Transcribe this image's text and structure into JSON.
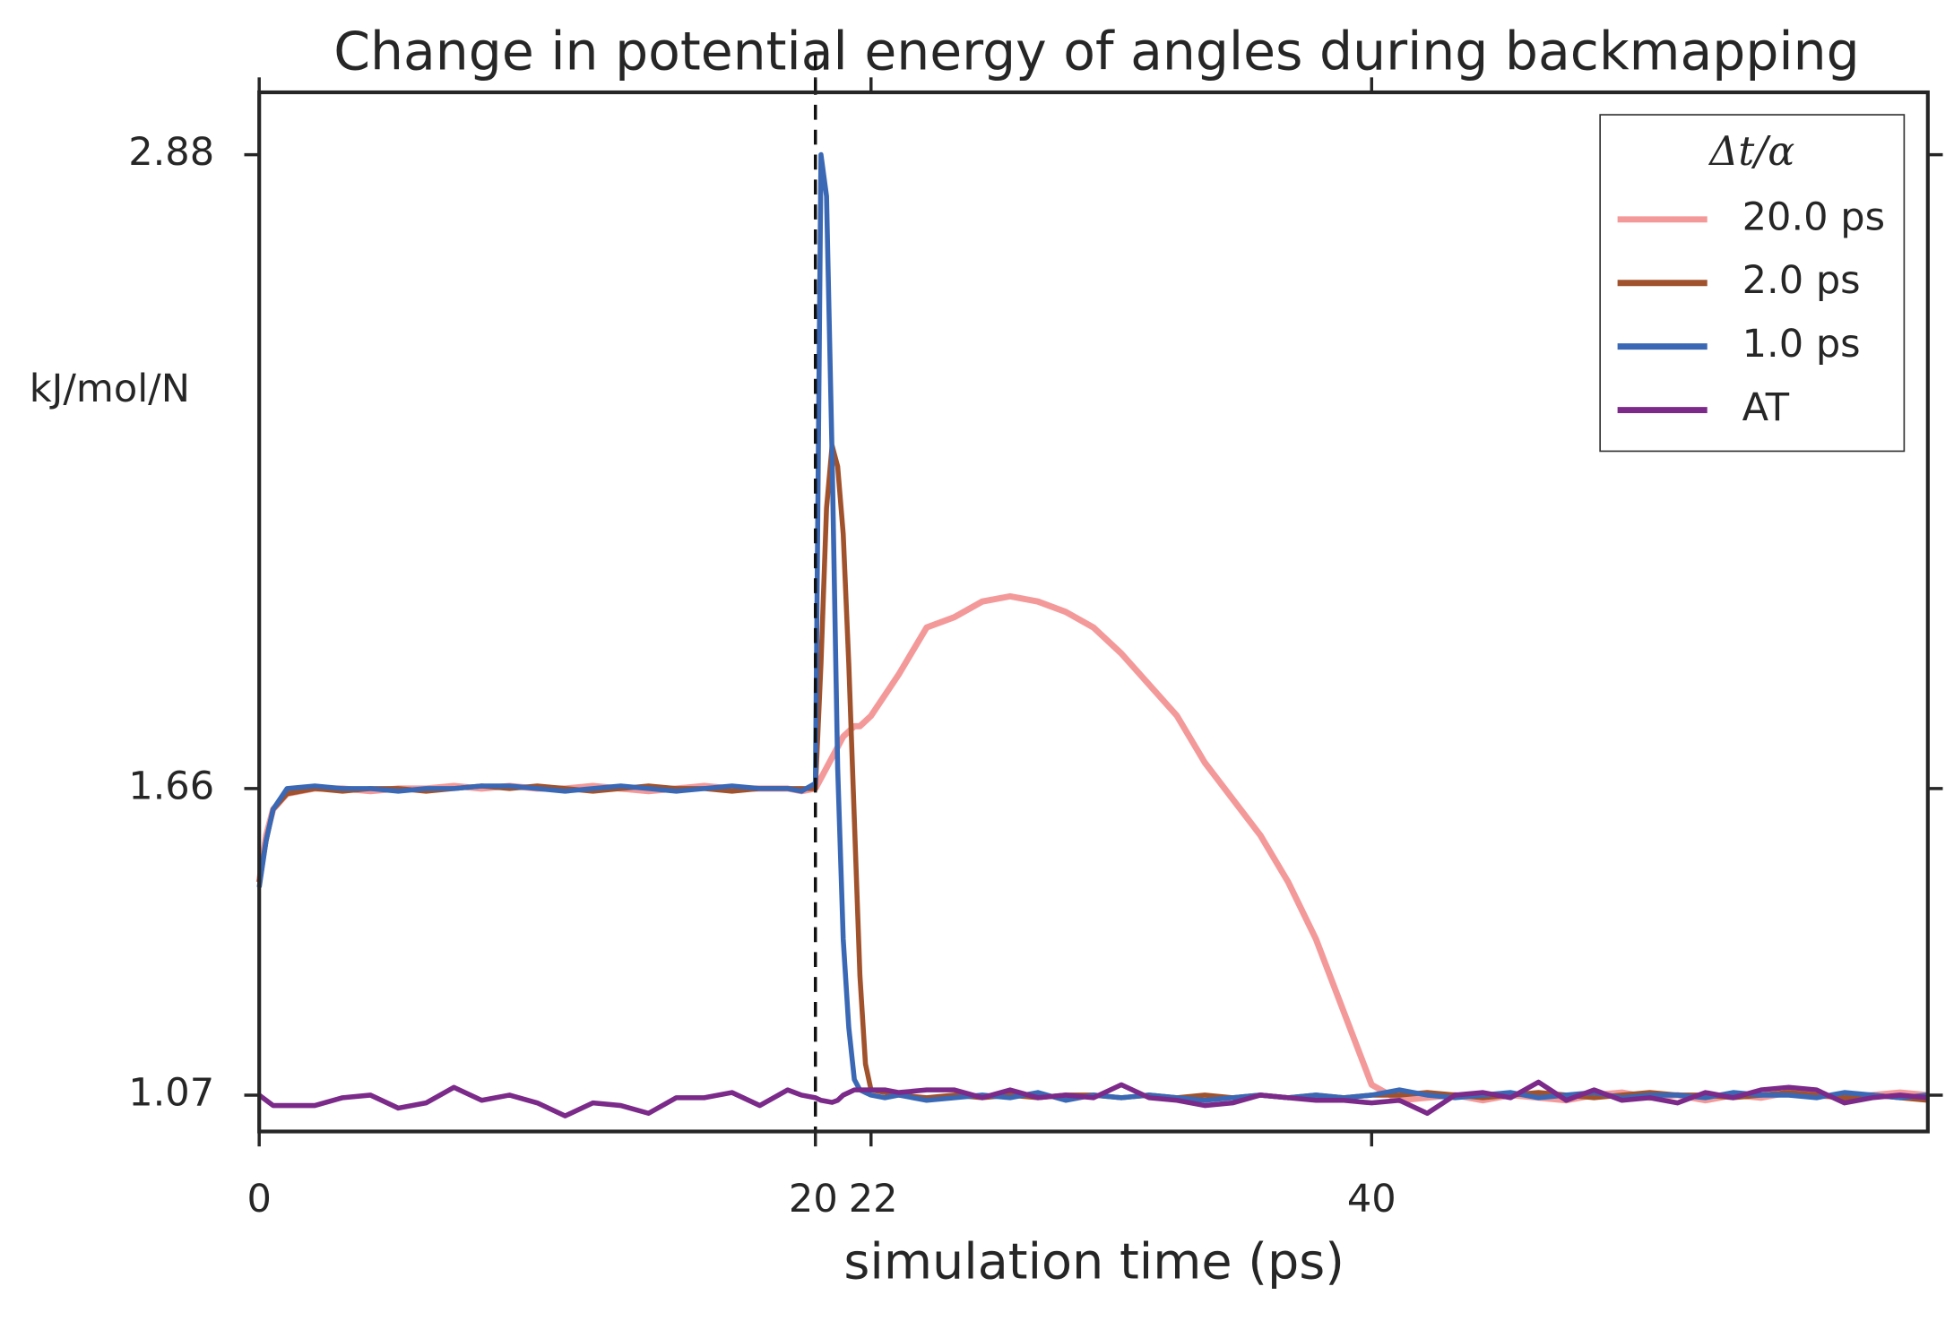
{
  "chart_data": {
    "type": "line",
    "title": "Change in potential energy of angles during backmapping",
    "x_label": "simulation time (ps)",
    "y_label": "kJ/mol/N",
    "legend_title": "Δt/α",
    "legend_position": "upper right",
    "xlim": [
      0,
      60
    ],
    "ylim": [
      1.0,
      3.0
    ],
    "xticks": [
      0,
      20,
      22,
      40
    ],
    "yticks": [
      1.07,
      1.66,
      2.88
    ],
    "vline": 20,
    "x": [
      0,
      0.25,
      0.5,
      1,
      2,
      3,
      4,
      5,
      6,
      7,
      8,
      9,
      10,
      11,
      12,
      13,
      14,
      15,
      16,
      17,
      18,
      19,
      19.5,
      20,
      20.2,
      20.4,
      20.6,
      20.8,
      21,
      21.2,
      21.4,
      21.6,
      21.8,
      22,
      22.5,
      23,
      24,
      25,
      26,
      27,
      28,
      29,
      30,
      31,
      32,
      33,
      34,
      35,
      36,
      37,
      38,
      39,
      40,
      41,
      42,
      43,
      44,
      45,
      46,
      47,
      48,
      49,
      50,
      51,
      52,
      53,
      54,
      55,
      56,
      57,
      58,
      59,
      60
    ],
    "series": [
      {
        "name": "20.0 ps",
        "color": "#f4999a",
        "values": [
          1.48,
          1.57,
          1.62,
          1.65,
          1.66,
          1.66,
          1.655,
          1.66,
          1.66,
          1.665,
          1.66,
          1.665,
          1.66,
          1.66,
          1.665,
          1.66,
          1.655,
          1.66,
          1.665,
          1.66,
          1.66,
          1.66,
          1.655,
          1.66,
          1.68,
          1.7,
          1.72,
          1.74,
          1.76,
          1.77,
          1.78,
          1.78,
          1.79,
          1.8,
          1.84,
          1.88,
          1.97,
          1.99,
          2.02,
          2.03,
          2.02,
          2.0,
          1.97,
          1.92,
          1.86,
          1.8,
          1.71,
          1.64,
          1.57,
          1.48,
          1.37,
          1.23,
          1.09,
          1.06,
          1.065,
          1.07,
          1.06,
          1.07,
          1.065,
          1.06,
          1.07,
          1.075,
          1.065,
          1.07,
          1.06,
          1.07,
          1.065,
          1.075,
          1.07,
          1.065,
          1.07,
          1.075,
          1.07
        ]
      },
      {
        "name": "2.0 ps",
        "color": "#a0522d",
        "values": [
          1.48,
          1.56,
          1.62,
          1.65,
          1.66,
          1.655,
          1.66,
          1.66,
          1.655,
          1.66,
          1.665,
          1.66,
          1.665,
          1.66,
          1.655,
          1.66,
          1.665,
          1.66,
          1.66,
          1.655,
          1.66,
          1.66,
          1.66,
          1.66,
          1.9,
          2.2,
          2.32,
          2.28,
          2.15,
          1.9,
          1.6,
          1.3,
          1.13,
          1.08,
          1.075,
          1.07,
          1.065,
          1.07,
          1.065,
          1.07,
          1.065,
          1.07,
          1.07,
          1.065,
          1.07,
          1.065,
          1.07,
          1.065,
          1.07,
          1.065,
          1.07,
          1.065,
          1.07,
          1.07,
          1.075,
          1.07,
          1.065,
          1.07,
          1.075,
          1.07,
          1.065,
          1.07,
          1.075,
          1.07,
          1.07,
          1.065,
          1.07,
          1.075,
          1.07,
          1.065,
          1.07,
          1.065,
          1.06
        ]
      },
      {
        "name": "1.0 ps",
        "color": "#3a68b4",
        "values": [
          1.47,
          1.56,
          1.62,
          1.66,
          1.665,
          1.66,
          1.66,
          1.655,
          1.66,
          1.66,
          1.665,
          1.665,
          1.66,
          1.655,
          1.66,
          1.665,
          1.66,
          1.655,
          1.66,
          1.665,
          1.66,
          1.66,
          1.655,
          1.67,
          2.88,
          2.8,
          2.3,
          1.7,
          1.37,
          1.2,
          1.1,
          1.08,
          1.075,
          1.07,
          1.065,
          1.07,
          1.06,
          1.065,
          1.07,
          1.065,
          1.075,
          1.06,
          1.07,
          1.065,
          1.07,
          1.065,
          1.06,
          1.065,
          1.07,
          1.065,
          1.07,
          1.065,
          1.07,
          1.08,
          1.07,
          1.065,
          1.07,
          1.075,
          1.065,
          1.07,
          1.075,
          1.065,
          1.07,
          1.07,
          1.065,
          1.075,
          1.07,
          1.07,
          1.065,
          1.075,
          1.07,
          1.065,
          1.07
        ]
      },
      {
        "name": "AT",
        "color": "#7b2a8a",
        "values": [
          1.07,
          1.06,
          1.05,
          1.05,
          1.05,
          1.065,
          1.07,
          1.045,
          1.055,
          1.085,
          1.06,
          1.07,
          1.055,
          1.03,
          1.055,
          1.05,
          1.035,
          1.065,
          1.065,
          1.075,
          1.05,
          1.08,
          1.07,
          1.065,
          1.06,
          1.058,
          1.056,
          1.06,
          1.07,
          1.075,
          1.08,
          1.08,
          1.08,
          1.08,
          1.08,
          1.075,
          1.08,
          1.08,
          1.065,
          1.08,
          1.065,
          1.07,
          1.065,
          1.09,
          1.065,
          1.06,
          1.05,
          1.055,
          1.07,
          1.065,
          1.06,
          1.06,
          1.055,
          1.06,
          1.035,
          1.07,
          1.075,
          1.065,
          1.095,
          1.06,
          1.08,
          1.06,
          1.065,
          1.055,
          1.075,
          1.065,
          1.08,
          1.085,
          1.08,
          1.055,
          1.065,
          1.07,
          1.065
        ]
      }
    ]
  }
}
